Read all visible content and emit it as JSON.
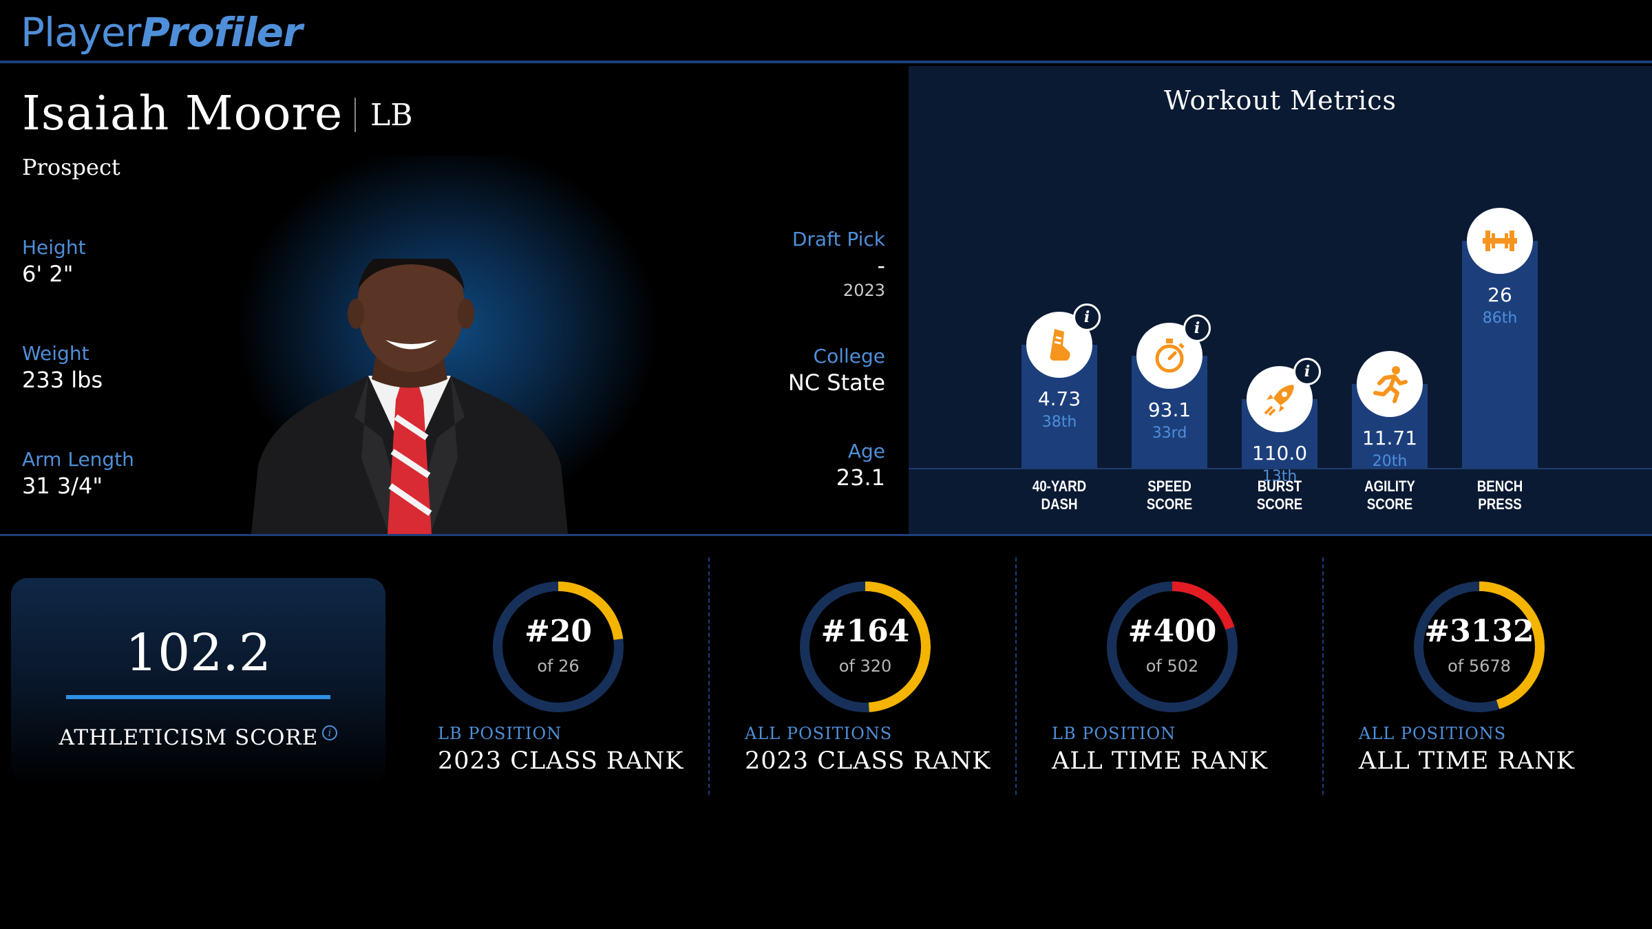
{
  "header": {
    "logo_part1": "Player",
    "logo_part2": "Profiler"
  },
  "player": {
    "name": "Isaiah Moore",
    "position": "LB",
    "status": "Prospect",
    "height": {
      "label": "Height",
      "value": "6' 2\""
    },
    "weight": {
      "label": "Weight",
      "value": "233 lbs"
    },
    "arm_length": {
      "label": "Arm Length",
      "value": "31 3/4\""
    },
    "draft_pick": {
      "label": "Draft Pick",
      "value": "-",
      "year": "2023"
    },
    "college": {
      "label": "College",
      "value": "NC State"
    },
    "age": {
      "label": "Age",
      "value": "23.1"
    }
  },
  "workout": {
    "title": "Workout Metrics",
    "metrics": [
      {
        "line1": "40-YARD",
        "line2": "DASH",
        "value": "4.73",
        "percentile": "38th",
        "percentile_num": 38,
        "icon": "shoe-icon",
        "info": true
      },
      {
        "line1": "SPEED",
        "line2": "SCORE",
        "value": "93.1",
        "percentile": "33rd",
        "percentile_num": 33,
        "icon": "stopwatch-icon",
        "info": true
      },
      {
        "line1": "BURST",
        "line2": "SCORE",
        "value": "110.0",
        "percentile": "13th",
        "percentile_num": 13,
        "icon": "rocket-icon",
        "info": true
      },
      {
        "line1": "AGILITY",
        "line2": "SCORE",
        "value": "11.71",
        "percentile": "20th",
        "percentile_num": 20,
        "icon": "runner-icon",
        "info": false
      },
      {
        "line1": "BENCH",
        "line2": "PRESS",
        "value": "26",
        "percentile": "86th",
        "percentile_num": 86,
        "icon": "barbell-icon",
        "info": false
      }
    ]
  },
  "athleticism": {
    "score": "102.2",
    "label": "ATHLETICISM SCORE",
    "info_glyph": "i"
  },
  "ranks": [
    {
      "rank": "#20",
      "of": "of 26",
      "category": "LB POSITION",
      "title": "2023 CLASS RANK",
      "fraction": 0.23,
      "color": "#f4b400"
    },
    {
      "rank": "#164",
      "of": "of 320",
      "category": "ALL POSITIONS",
      "title": "2023 CLASS RANK",
      "fraction": 0.49,
      "color": "#f4b400"
    },
    {
      "rank": "#400",
      "of": "of 502",
      "category": "LB POSITION",
      "title": "ALL TIME RANK",
      "fraction": 0.2,
      "color": "#e31b23"
    },
    {
      "rank": "#3132",
      "of": "of 5678",
      "category": "ALL POSITIONS",
      "title": "ALL TIME RANK",
      "fraction": 0.45,
      "color": "#f4b400"
    }
  ],
  "colors": {
    "accent": "#4f8fd9",
    "bar": "#1c3f7c",
    "icon_orange": "#f7941d",
    "panel": "#0b1a33"
  }
}
